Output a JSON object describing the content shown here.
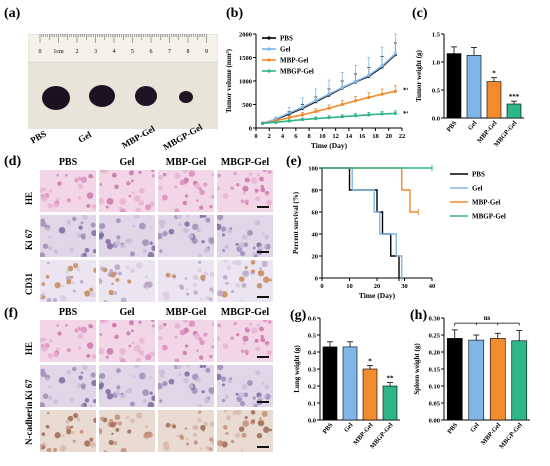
{
  "panels": {
    "a": "(a)",
    "b": "(b)",
    "c": "(c)",
    "d": "(d)",
    "e": "(e)",
    "f": "(f)",
    "g": "(g)",
    "h": "(h)"
  },
  "groups": [
    "PBS",
    "Gel",
    "MBP-Gel",
    "MBGP-Gel"
  ],
  "colors": {
    "PBS": "#000000",
    "Gel": "#7fb6e8",
    "MBP-Gel": "#f28a2e",
    "MBGP-Gel": "#2fb58a"
  },
  "ruler": {
    "unit": "1cm",
    "ticks": [
      "0",
      "1cm",
      "2",
      "3",
      "4",
      "5",
      "6",
      "7",
      "8",
      "9"
    ]
  },
  "photo_labels": [
    "PBS",
    "Gel",
    "MBP-Gel",
    "MBGP-Gel"
  ],
  "histo_d": {
    "rows": [
      "HE",
      "Ki 67",
      "CD31"
    ],
    "cols": [
      "PBS",
      "Gel",
      "MBP-Gel",
      "MBGP-Gel"
    ]
  },
  "histo_f": {
    "rows": [
      "HE",
      "Ki 67",
      "N-cadherin"
    ],
    "cols": [
      "PBS",
      "Gel",
      "MBP-Gel",
      "MBGP-Gel"
    ]
  },
  "chart_data": [
    {
      "id": "b",
      "type": "line",
      "xlabel": "Time (Day)",
      "ylabel": "Tumor volume (mm³)",
      "xlim": [
        0,
        22
      ],
      "ylim": [
        0,
        2000
      ],
      "xticks": [
        0,
        2,
        4,
        6,
        8,
        10,
        12,
        14,
        16,
        18,
        20,
        22
      ],
      "yticks": [
        0,
        500,
        1000,
        1500,
        2000
      ],
      "x": [
        1,
        3,
        5,
        7,
        9,
        11,
        13,
        15,
        17,
        19,
        21
      ],
      "series": [
        {
          "name": "PBS",
          "color": "#000000",
          "values": [
            100,
            180,
            300,
            420,
            560,
            700,
            850,
            980,
            1100,
            1300,
            1560
          ],
          "err": [
            20,
            30,
            50,
            80,
            100,
            130,
            150,
            170,
            190,
            220,
            250
          ]
        },
        {
          "name": "Gel",
          "color": "#7fb6e8",
          "values": [
            100,
            190,
            320,
            440,
            580,
            720,
            860,
            990,
            1120,
            1320,
            1580
          ],
          "err": [
            20,
            40,
            120,
            200,
            250,
            300,
            320,
            340,
            380,
            400,
            420
          ]
        },
        {
          "name": "MBP-Gel",
          "color": "#f28a2e",
          "values": [
            100,
            150,
            220,
            280,
            350,
            420,
            500,
            580,
            650,
            720,
            780
          ],
          "err": [
            20,
            30,
            40,
            50,
            60,
            70,
            80,
            90,
            100,
            110,
            120
          ]
        },
        {
          "name": "MBGP-Gel",
          "color": "#2fb58a",
          "values": [
            100,
            120,
            150,
            180,
            200,
            220,
            240,
            260,
            280,
            300,
            310
          ],
          "err": [
            10,
            20,
            25,
            30,
            35,
            40,
            40,
            45,
            50,
            50,
            55
          ]
        }
      ],
      "annotations": [
        "**",
        "***"
      ],
      "legend": "top-left"
    },
    {
      "id": "c",
      "type": "bar",
      "ylabel": "Tumor weight (g)",
      "ylim": [
        0,
        1.5
      ],
      "yticks": [
        0.0,
        0.5,
        1.0,
        1.5
      ],
      "categories": [
        "PBS",
        "Gel",
        "MBP-Gel",
        "MBGP-Gel"
      ],
      "values": [
        1.15,
        1.12,
        0.65,
        0.25
      ],
      "err": [
        0.12,
        0.14,
        0.07,
        0.05
      ],
      "annotations": [
        "",
        "",
        "*",
        "***"
      ]
    },
    {
      "id": "e",
      "type": "line",
      "xlabel": "Time (Day)",
      "ylabel": "Percent survival (%)",
      "xlim": [
        0,
        40
      ],
      "ylim": [
        0,
        100
      ],
      "xticks": [
        0,
        10,
        20,
        30,
        40
      ],
      "yticks": [
        0,
        20,
        40,
        60,
        80,
        100
      ],
      "series": [
        {
          "name": "PBS",
          "color": "#000000",
          "steps": [
            [
              0,
              100
            ],
            [
              10,
              100
            ],
            [
              10,
              80
            ],
            [
              20,
              80
            ],
            [
              20,
              60
            ],
            [
              22,
              60
            ],
            [
              22,
              40
            ],
            [
              25,
              40
            ],
            [
              25,
              20
            ],
            [
              28,
              20
            ],
            [
              28,
              0
            ]
          ]
        },
        {
          "name": "Gel",
          "color": "#7fb6e8",
          "steps": [
            [
              0,
              100
            ],
            [
              11,
              100
            ],
            [
              11,
              80
            ],
            [
              19,
              80
            ],
            [
              19,
              60
            ],
            [
              21,
              60
            ],
            [
              21,
              40
            ],
            [
              27,
              40
            ],
            [
              27,
              20
            ],
            [
              29,
              20
            ],
            [
              29,
              0
            ]
          ]
        },
        {
          "name": "MBP-Gel",
          "color": "#f28a2e",
          "steps": [
            [
              0,
              100
            ],
            [
              29,
              100
            ],
            [
              29,
              80
            ],
            [
              32,
              80
            ],
            [
              32,
              60
            ],
            [
              35,
              60
            ]
          ]
        },
        {
          "name": "MBGP-Gel",
          "color": "#2fb58a",
          "steps": [
            [
              0,
              100
            ],
            [
              40,
              100
            ]
          ]
        }
      ],
      "legend": "right"
    },
    {
      "id": "g",
      "type": "bar",
      "ylabel": "Lung weight (g)",
      "ylim": [
        0,
        0.6
      ],
      "yticks": [
        0.0,
        0.1,
        0.2,
        0.3,
        0.4,
        0.5,
        0.6
      ],
      "categories": [
        "PBS",
        "Gel",
        "MBP-Gel",
        "MBGP-Gel"
      ],
      "values": [
        0.43,
        0.43,
        0.3,
        0.2
      ],
      "err": [
        0.03,
        0.03,
        0.02,
        0.02
      ],
      "annotations": [
        "",
        "",
        "*",
        "**"
      ]
    },
    {
      "id": "h",
      "type": "bar",
      "ylabel": "Spleen weight (g)",
      "ylim": [
        0,
        0.3
      ],
      "yticks": [
        0.0,
        0.05,
        0.1,
        0.15,
        0.2,
        0.25,
        0.3
      ],
      "categories": [
        "PBS",
        "Gel",
        "MBP-Gel",
        "MBGP-Gel"
      ],
      "values": [
        0.24,
        0.235,
        0.24,
        0.233
      ],
      "err": [
        0.025,
        0.015,
        0.015,
        0.03
      ],
      "annotations": [
        "ns"
      ]
    }
  ]
}
